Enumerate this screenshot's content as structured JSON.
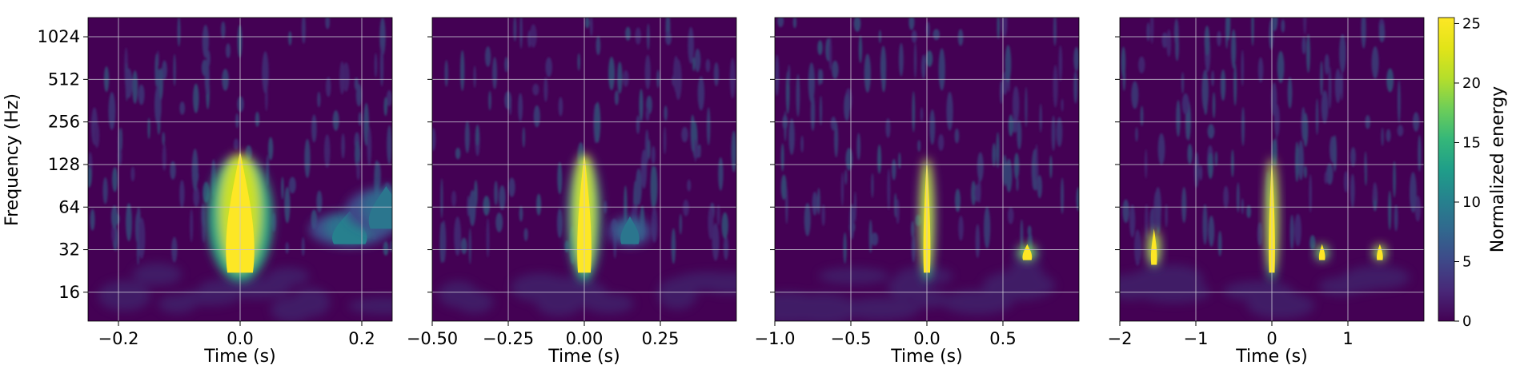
{
  "colors": {
    "background": "#440154",
    "peak": "#fde725",
    "grid": "#c8c8d2"
  },
  "chart_data": [
    {
      "type": "heatmap",
      "title": "",
      "xlabel": "Time (s)",
      "ylabel": "Frequency (Hz)",
      "y_scale": "log2",
      "xlim": [
        -0.25,
        0.25
      ],
      "ylim": [
        10,
        1400
      ],
      "x_ticks": [
        -0.2,
        0.0,
        0.2
      ],
      "x_tick_labels": [
        "−0.2",
        "0.0",
        "0.2"
      ],
      "y_ticks": [
        16,
        32,
        64,
        128,
        256,
        512,
        1024
      ],
      "y_tick_labels": [
        "16",
        "32",
        "64",
        "128",
        "256",
        "512",
        "1024"
      ],
      "grid": true,
      "blobs": [
        {
          "t": 0.0,
          "f_low": 22,
          "f_high": 160,
          "energy": 25.5
        },
        {
          "t": 0.18,
          "f_low": 35,
          "f_high": 60,
          "energy": 10
        },
        {
          "t": 0.24,
          "f_low": 45,
          "f_high": 90,
          "energy": 9
        }
      ]
    },
    {
      "type": "heatmap",
      "title": "",
      "xlabel": "Time (s)",
      "ylabel": "",
      "y_scale": "log2",
      "xlim": [
        -0.5,
        0.5
      ],
      "ylim": [
        10,
        1400
      ],
      "x_ticks": [
        -0.5,
        -0.25,
        0.0,
        0.25
      ],
      "x_tick_labels": [
        "−0.50",
        "−0.25",
        "0.00",
        "0.25"
      ],
      "y_ticks": [
        16,
        32,
        64,
        128,
        256,
        512,
        1024
      ],
      "y_tick_labels": [],
      "grid": true,
      "blobs": [
        {
          "t": 0.0,
          "f_low": 22,
          "f_high": 160,
          "energy": 25.5
        },
        {
          "t": 0.15,
          "f_low": 35,
          "f_high": 55,
          "energy": 9
        }
      ]
    },
    {
      "type": "heatmap",
      "title": "",
      "xlabel": "Time (s)",
      "ylabel": "",
      "y_scale": "log2",
      "xlim": [
        -1.0,
        1.0
      ],
      "ylim": [
        10,
        1400
      ],
      "x_ticks": [
        -1.0,
        -0.5,
        0.0,
        0.5
      ],
      "x_tick_labels": [
        "−1.0",
        "−0.5",
        "0.0",
        "0.5"
      ],
      "y_ticks": [
        16,
        32,
        64,
        128,
        256,
        512,
        1024
      ],
      "y_tick_labels": [],
      "grid": true,
      "blobs": [
        {
          "t": 0.0,
          "f_low": 22,
          "f_high": 150,
          "energy": 25.5
        },
        {
          "t": 0.66,
          "f_low": 27,
          "f_high": 35,
          "energy": 22
        }
      ]
    },
    {
      "type": "heatmap",
      "title": "",
      "xlabel": "Time (s)",
      "ylabel": "",
      "y_scale": "log2",
      "xlim": [
        -2.0,
        2.0
      ],
      "ylim": [
        10,
        1400
      ],
      "x_ticks": [
        -2,
        -1,
        0,
        1
      ],
      "x_tick_labels": [
        "−2",
        "−1",
        "0",
        "1"
      ],
      "y_ticks": [
        16,
        32,
        64,
        128,
        256,
        512,
        1024
      ],
      "y_tick_labels": [],
      "grid": true,
      "blobs": [
        {
          "t": -1.55,
          "f_low": 25,
          "f_high": 45,
          "energy": 25
        },
        {
          "t": 0.0,
          "f_low": 22,
          "f_high": 150,
          "energy": 25.5
        },
        {
          "t": 0.66,
          "f_low": 27,
          "f_high": 35,
          "energy": 22
        },
        {
          "t": 1.42,
          "f_low": 27,
          "f_high": 35,
          "energy": 24
        }
      ]
    }
  ],
  "colorbar": {
    "label": "Normalized energy",
    "range": [
      0,
      25.5
    ],
    "ticks": [
      0,
      5,
      10,
      15,
      20,
      25
    ],
    "tick_labels": [
      "0",
      "5",
      "10",
      "15",
      "20",
      "25"
    ]
  }
}
